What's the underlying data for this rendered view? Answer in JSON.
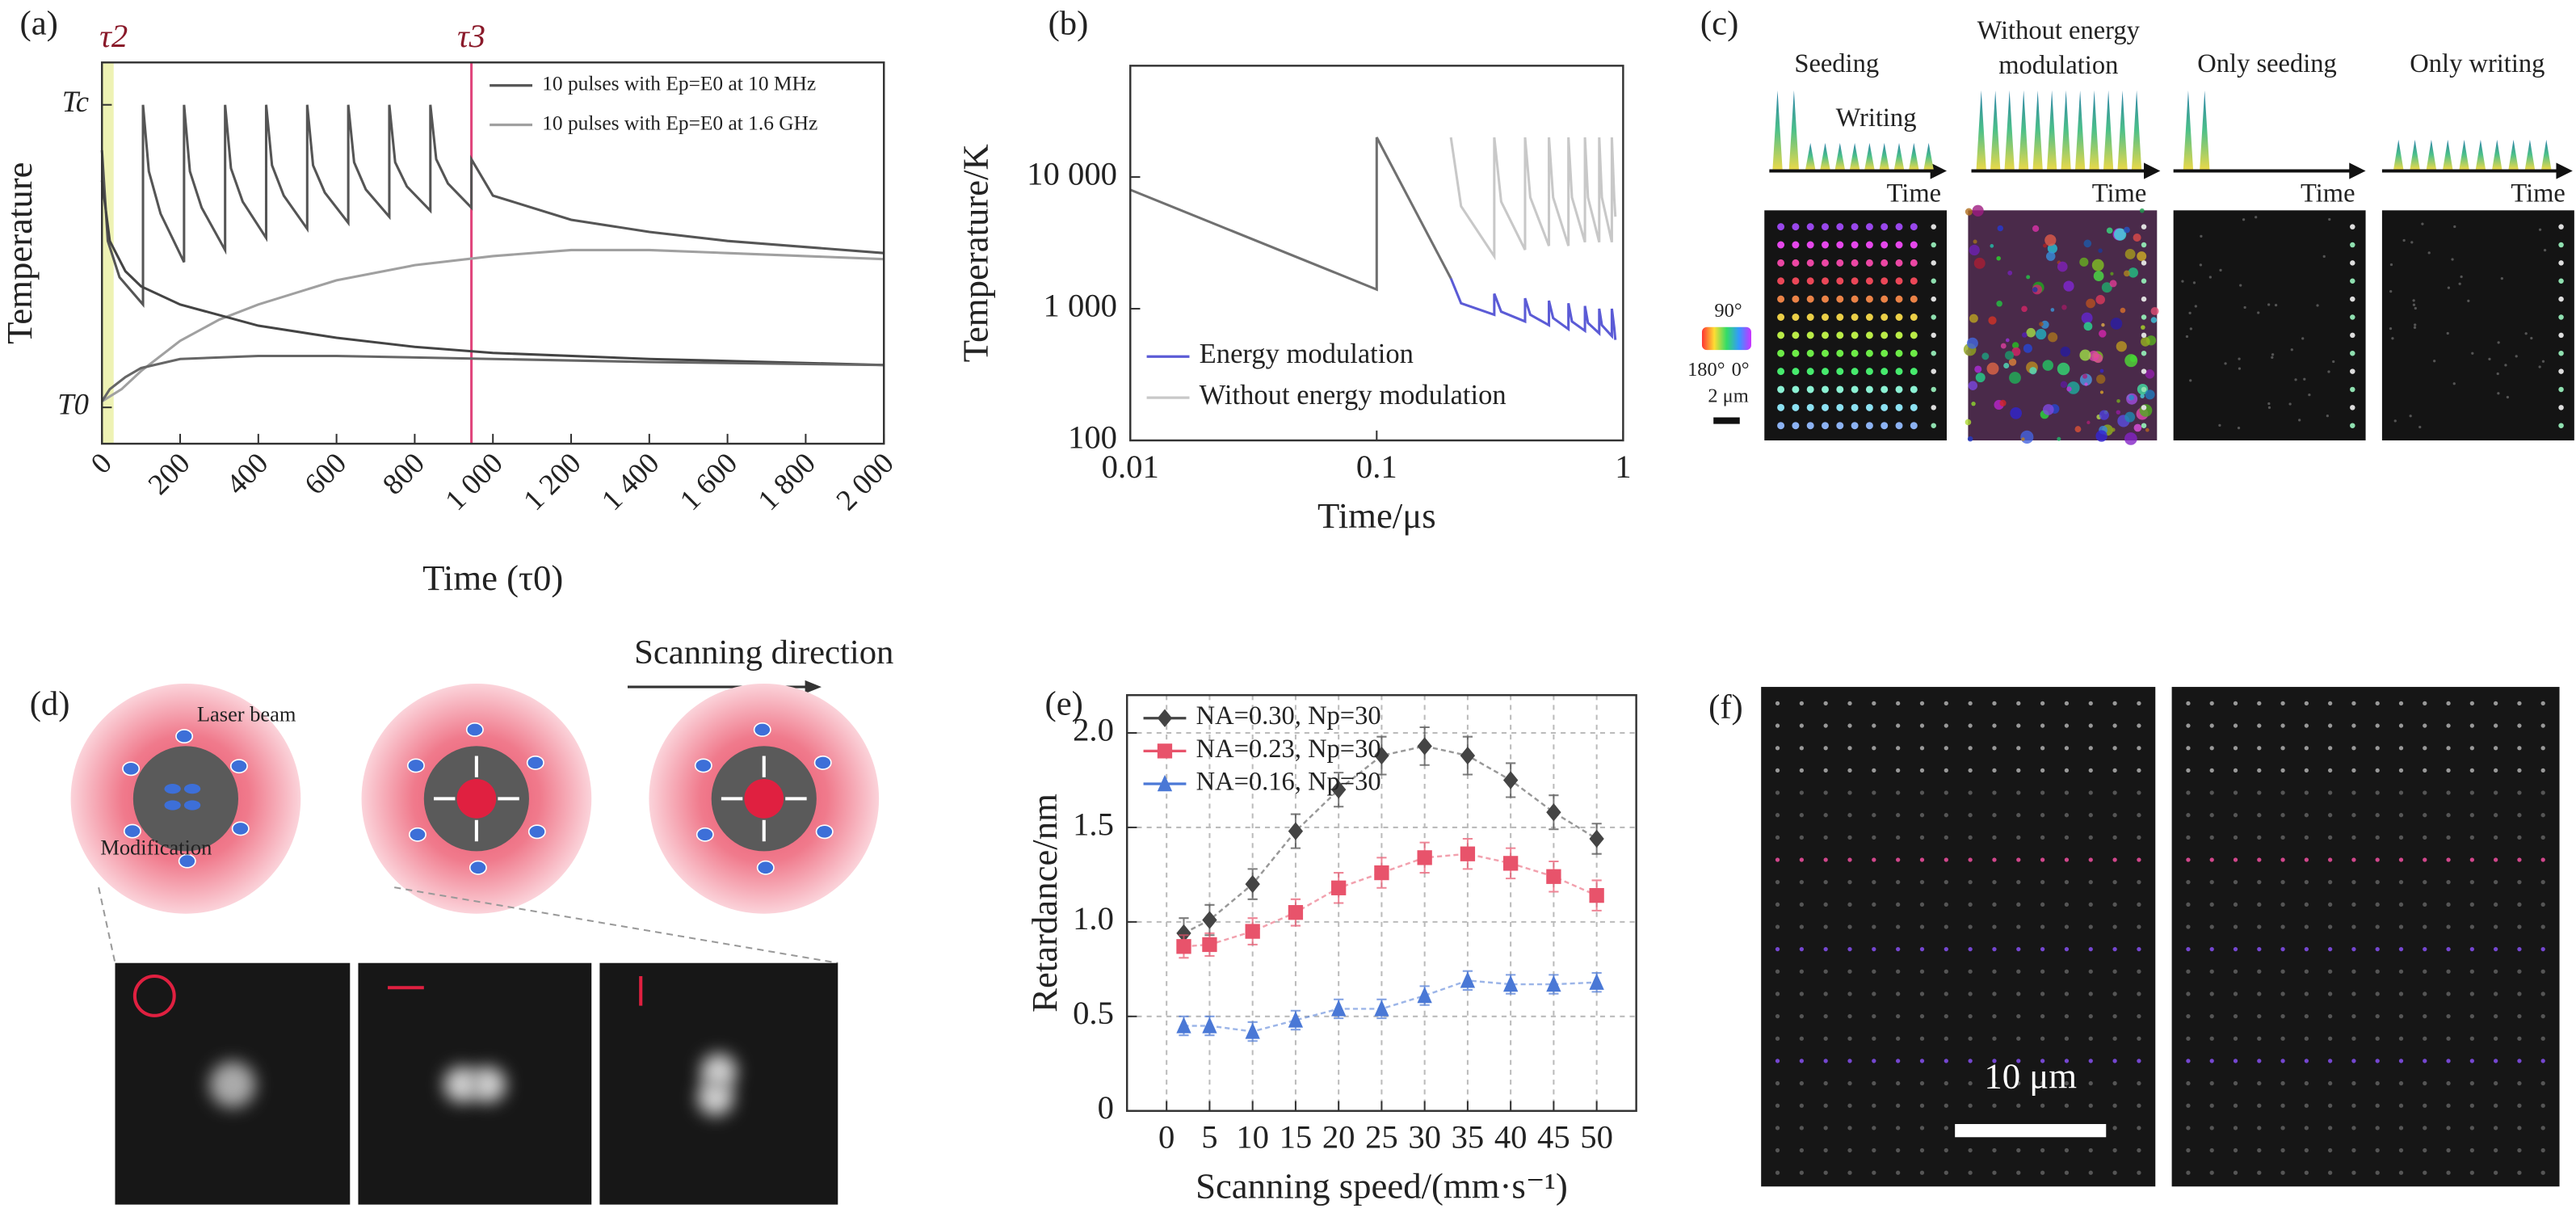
{
  "chart_data": [
    {
      "type": "line",
      "panel_label": "(a)",
      "x_label": "Time (τ0)",
      "y_label": "Temperature",
      "xlim": [
        0,
        2000
      ],
      "ylim": [
        -0.12,
        1.14
      ],
      "xtick_rotation": -45,
      "legend": "upper right",
      "grid": false,
      "xticks": [
        0,
        200,
        400,
        600,
        800,
        {
          "value": 1000,
          "label": "1 000"
        },
        {
          "value": 1200,
          "label": "1 200"
        },
        {
          "value": 1400,
          "label": "1 400"
        },
        {
          "value": 1600,
          "label": "1 600"
        },
        {
          "value": 1800,
          "label": "1 800"
        },
        {
          "value": 2000,
          "label": "2 000"
        }
      ],
      "yticks": [
        {
          "value": 0,
          "label": "T0"
        },
        {
          "value": 1,
          "label": "Tc"
        }
      ],
      "spans": [
        {
          "x": [
            0,
            30
          ],
          "color": "#eef2b4"
        }
      ],
      "vlines": [
        {
          "x": 945,
          "color": "#e0457b"
        }
      ],
      "annotations": [
        {
          "text": "τ2",
          "x": 30
        },
        {
          "text": "τ3",
          "x": 945
        }
      ],
      "series": [
        {
          "name": "10 pulses with Ep=E0 at 10 MHz",
          "color": "#555555",
          "x": [
            0,
            15,
            45,
            105,
            105,
            120,
            150,
            210,
            210,
            225,
            255,
            315,
            315,
            330,
            360,
            420,
            420,
            435,
            465,
            525,
            525,
            540,
            570,
            630,
            630,
            645,
            675,
            735,
            735,
            750,
            780,
            840,
            840,
            855,
            885,
            945,
            945,
            1000,
            1200,
            1400,
            1600,
            1800,
            2000
          ],
          "values": [
            0.85,
            0.55,
            0.43,
            0.34,
            1.0,
            0.78,
            0.64,
            0.48,
            1.0,
            0.78,
            0.66,
            0.52,
            1.0,
            0.79,
            0.68,
            0.56,
            1.0,
            0.8,
            0.7,
            0.59,
            1.0,
            0.8,
            0.71,
            0.61,
            1.0,
            0.81,
            0.72,
            0.63,
            1.0,
            0.81,
            0.73,
            0.65,
            1.0,
            0.82,
            0.74,
            0.66,
            0.82,
            0.7,
            0.62,
            0.58,
            0.55,
            0.53,
            0.51
          ]
        },
        {
          "name": "10 pulses with Ep=E0 at 1.6 GHz",
          "color": "#a0a0a0",
          "x": [
            0,
            50,
            100,
            200,
            300,
            400,
            600,
            800,
            1000,
            1200,
            1400,
            1600,
            1800,
            2000
          ],
          "values": [
            0.02,
            0.06,
            0.12,
            0.22,
            0.29,
            0.34,
            0.42,
            0.47,
            0.5,
            0.52,
            0.52,
            0.51,
            0.5,
            0.49
          ]
        },
        {
          "color": "#444444",
          "x": [
            0,
            20,
            60,
            100,
            200,
            400,
            600,
            800,
            1000,
            1400,
            2000
          ],
          "values": [
            0.75,
            0.55,
            0.45,
            0.4,
            0.34,
            0.27,
            0.23,
            0.2,
            0.18,
            0.16,
            0.14
          ]
        },
        {
          "color": "#666666",
          "x": [
            0,
            20,
            60,
            100,
            200,
            400,
            600,
            1000,
            1400,
            2000
          ],
          "values": [
            0.02,
            0.06,
            0.1,
            0.13,
            0.16,
            0.17,
            0.17,
            0.16,
            0.15,
            0.14
          ]
        }
      ]
    },
    {
      "type": "line",
      "panel_label": "(b)",
      "x_label": "Time/μs",
      "y_label": "Temperature/K",
      "xscale": "log",
      "yscale": "log",
      "xlim": [
        0.01,
        1
      ],
      "ylim": [
        100,
        70000
      ],
      "legend": "lower left",
      "grid": false,
      "xticks": [
        0.01,
        0.1,
        1
      ],
      "yticks": [
        100,
        {
          "value": 1000,
          "label": "1 000"
        },
        {
          "value": 10000,
          "label": "10 000"
        }
      ],
      "series": [
        {
          "name": "Energy modulation",
          "color": "#5b5bd6",
          "x": [
            0.2,
            0.22,
            0.3,
            0.3,
            0.32,
            0.4,
            0.4,
            0.42,
            0.5,
            0.5,
            0.52,
            0.6,
            0.6,
            0.62,
            0.7,
            0.7,
            0.72,
            0.8,
            0.8,
            0.82,
            0.9,
            0.9,
            0.92,
            0.93
          ],
          "values": [
            1700,
            1100,
            900,
            1300,
            950,
            800,
            1200,
            900,
            750,
            1150,
            850,
            700,
            1100,
            800,
            680,
            1050,
            780,
            650,
            1000,
            750,
            620,
            1000,
            720,
            580
          ]
        },
        {
          "name": "Without energy modulation",
          "color": "#c8c8c8",
          "x": [
            0.2,
            0.22,
            0.3,
            0.3,
            0.32,
            0.4,
            0.4,
            0.42,
            0.5,
            0.5,
            0.52,
            0.6,
            0.6,
            0.62,
            0.7,
            0.7,
            0.72,
            0.8,
            0.8,
            0.82,
            0.9,
            0.9,
            0.92,
            0.93
          ],
          "values": [
            20000,
            6000,
            2500,
            20000,
            6500,
            2800,
            20000,
            7000,
            3000,
            20000,
            7000,
            3000,
            20000,
            7000,
            3200,
            20000,
            7000,
            3200,
            20000,
            7000,
            3200,
            20000,
            7000,
            5000
          ]
        },
        {
          "color": "#707070",
          "x": [
            0.01,
            0.1,
            0.1,
            0.2
          ],
          "values": [
            8000,
            1400,
            20000,
            1700
          ]
        }
      ]
    },
    {
      "type": "line",
      "panel_label": "(e)",
      "x_label": "Scanning speed/(mm·s⁻¹)",
      "y_label": "Retardance/nm",
      "xlim": [
        -4.6,
        54.6
      ],
      "ylim": [
        0,
        2.2
      ],
      "legend": "upper left",
      "grid": true,
      "xticks": [
        0,
        5,
        10,
        15,
        20,
        25,
        30,
        35,
        40,
        45,
        50
      ],
      "yticks": [
        0,
        0.5,
        {
          "value": 1,
          "label": "1.0"
        },
        1.5,
        {
          "value": 2,
          "label": "2.0"
        }
      ],
      "x": [
        2,
        5,
        10,
        15,
        20,
        25,
        30,
        35,
        40,
        45,
        50
      ],
      "series": [
        {
          "name": "NA=0.30, Np=30",
          "color": "#444444",
          "marker": "diamond",
          "values": [
            0.94,
            1.01,
            1.2,
            1.48,
            1.7,
            1.88,
            1.93,
            1.88,
            1.75,
            1.58,
            1.44
          ],
          "errors": [
            0.08,
            0.08,
            0.08,
            0.09,
            0.09,
            0.1,
            0.1,
            0.1,
            0.09,
            0.09,
            0.08
          ]
        },
        {
          "name": "NA=0.23, Np=30",
          "color": "#e8536b",
          "marker": "square",
          "values": [
            0.87,
            0.88,
            0.95,
            1.05,
            1.18,
            1.26,
            1.34,
            1.36,
            1.31,
            1.24,
            1.14
          ],
          "errors": [
            0.06,
            0.06,
            0.07,
            0.07,
            0.08,
            0.08,
            0.08,
            0.08,
            0.08,
            0.08,
            0.08
          ]
        },
        {
          "name": "NA=0.16, Np=30",
          "color": "#4a78d6",
          "marker": "triangle",
          "values": [
            0.45,
            0.45,
            0.42,
            0.48,
            0.54,
            0.54,
            0.61,
            0.69,
            0.67,
            0.67,
            0.68
          ],
          "errors": [
            0.05,
            0.05,
            0.05,
            0.05,
            0.05,
            0.05,
            0.05,
            0.05,
            0.05,
            0.05,
            0.05
          ]
        }
      ]
    }
  ],
  "panel_c": {
    "label": "(c)",
    "seeding": "Seeding",
    "writing": "Writing",
    "without_1": "Without energy",
    "without_2": "modulation",
    "only_seeding": "Only seeding",
    "only_writing": "Only writing",
    "time": [
      "Time",
      "Time",
      "Time",
      "Time"
    ],
    "wheel_top": "90°",
    "wheel_left": "180°",
    "wheel_right": "0°",
    "scale_bar": "2 μm"
  },
  "panel_d": {
    "label": "(d)",
    "scanning": "Scanning direction",
    "laser": "Laser beam",
    "modification": "Modification"
  },
  "panel_f": {
    "label": "(f)",
    "scale_bar": "10 μm"
  }
}
